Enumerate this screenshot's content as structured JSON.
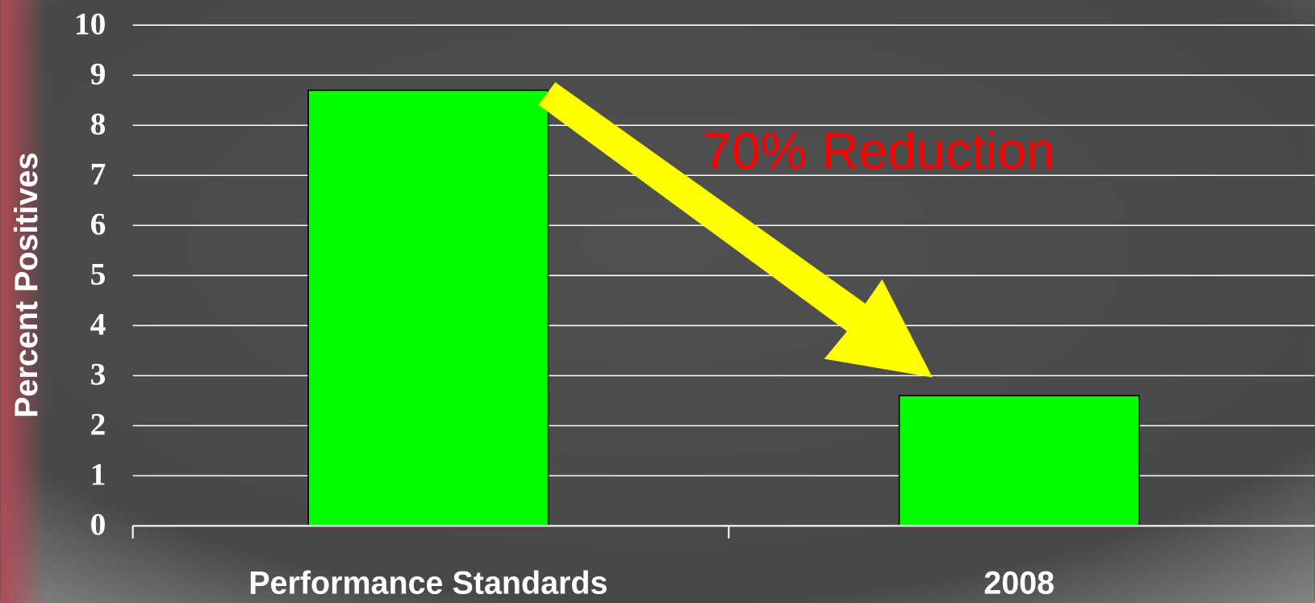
{
  "chart_data": {
    "type": "bar",
    "y_label": "Percent Positives",
    "annotation": "70% Reduction",
    "categories": [
      "Performance Standards",
      "2008"
    ],
    "values": [
      8.7,
      2.6
    ],
    "color": "#00ff00",
    "ylim": [
      0,
      10
    ],
    "yticks": [
      0,
      1,
      2,
      3,
      4,
      5,
      6,
      7,
      8,
      9,
      10
    ],
    "grid": true
  }
}
